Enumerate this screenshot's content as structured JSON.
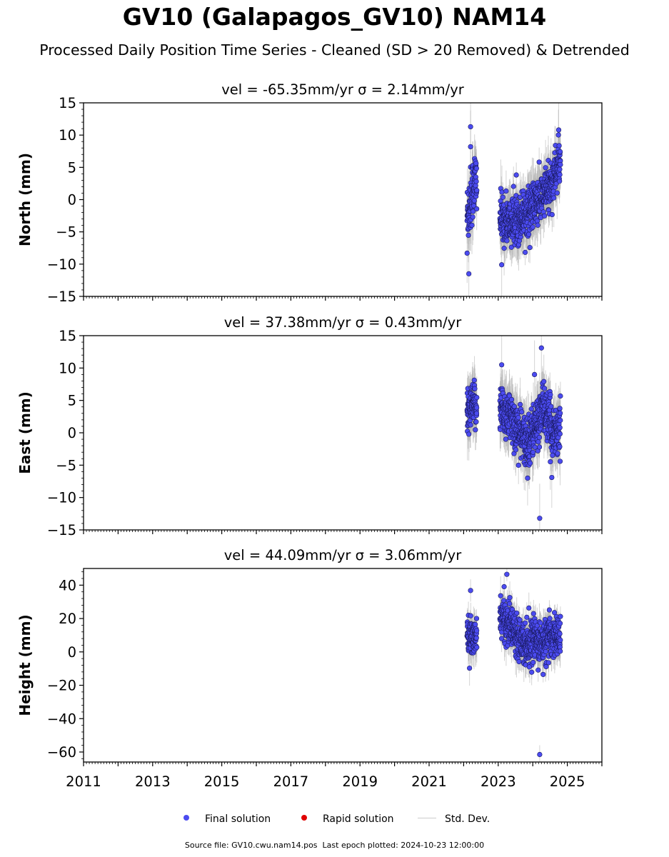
{
  "title": "GV10 (Galapagos_GV10) NAM14",
  "subtitle": "Processed Daily Position Time Series - Cleaned (SD > 20 Removed) & Detrended",
  "footer": {
    "source_label": "Source file: GV10.cwu.nam14.pos",
    "epoch_label": "Last epoch plotted: 2024-10-23 12:00:00"
  },
  "legend": {
    "final": "Final solution",
    "rapid": "Rapid solution",
    "stddev": "Std. Dev."
  },
  "colors": {
    "final": "#4b4bf0",
    "final_edge": "#1a1a60",
    "rapid": "#e00000",
    "stddev": "#b0b0b0"
  },
  "chart_data": [
    {
      "type": "scatter",
      "title": "vel = -65.35mm/yr   σ = 2.14mm/yr",
      "ylabel": "North (mm)",
      "xlim": [
        2011,
        2026
      ],
      "ylim": [
        -15,
        15
      ],
      "yticks": [
        -15,
        -10,
        -5,
        0,
        5,
        10,
        15
      ],
      "ytick_labels": [
        "−15",
        "−10",
        "−5",
        "0",
        "5",
        "10",
        "15"
      ],
      "clusters": [
        {
          "x_start": 2022.1,
          "x_end": 2022.38,
          "anchors": [
            [
              2022.1,
              -2.5
            ],
            [
              2022.2,
              0
            ],
            [
              2022.3,
              2.5
            ],
            [
              2022.38,
              3
            ]
          ],
          "sd": 2.5,
          "err": 3.5
        },
        {
          "x_start": 2023.05,
          "x_end": 2024.8,
          "anchors": [
            [
              2023.05,
              -3
            ],
            [
              2023.4,
              -3.5
            ],
            [
              2023.8,
              -2
            ],
            [
              2024.2,
              0
            ],
            [
              2024.5,
              2
            ],
            [
              2024.8,
              6
            ]
          ],
          "sd": 1.8,
          "err": 3.5
        }
      ],
      "outliers": [
        [
          2022.2,
          11.3
        ],
        [
          2022.2,
          8.2
        ],
        [
          2022.15,
          -11.5
        ],
        [
          2022.1,
          -8.3
        ],
        [
          2023.1,
          -10.1
        ],
        [
          2024.75,
          10.8
        ]
      ]
    },
    {
      "type": "scatter",
      "title": "vel = 37.38mm/yr   σ = 0.43mm/yr",
      "ylabel": "East (mm)",
      "xlim": [
        2011,
        2026
      ],
      "ylim": [
        -15,
        15
      ],
      "yticks": [
        -15,
        -10,
        -5,
        0,
        5,
        10,
        15
      ],
      "ytick_labels": [
        "−15",
        "−10",
        "−5",
        "0",
        "5",
        "10",
        "15"
      ],
      "clusters": [
        {
          "x_start": 2022.1,
          "x_end": 2022.38,
          "anchors": [
            [
              2022.1,
              2
            ],
            [
              2022.25,
              4
            ],
            [
              2022.38,
              4
            ]
          ],
          "sd": 1.7,
          "err": 3.5
        },
        {
          "x_start": 2023.05,
          "x_end": 2024.8,
          "anchors": [
            [
              2023.05,
              4
            ],
            [
              2023.4,
              2
            ],
            [
              2023.8,
              -1.5
            ],
            [
              2024.1,
              1
            ],
            [
              2024.3,
              4
            ],
            [
              2024.6,
              0
            ],
            [
              2024.8,
              1
            ]
          ],
          "sd": 1.9,
          "err": 3.5
        }
      ],
      "outliers": [
        [
          2023.1,
          10.5
        ],
        [
          2024.25,
          13.1
        ],
        [
          2024.2,
          -13.2
        ],
        [
          2023.85,
          -7
        ],
        [
          2024.55,
          -6.9
        ],
        [
          2024.05,
          9
        ]
      ]
    },
    {
      "type": "scatter",
      "title": "vel = 44.09mm/yr   σ = 3.06mm/yr",
      "ylabel": "Height (mm)",
      "xlim": [
        2011,
        2026
      ],
      "ylim": [
        -66,
        50
      ],
      "yticks": [
        -60,
        -40,
        -20,
        0,
        20,
        40
      ],
      "ytick_labels": [
        "−60",
        "−40",
        "−20",
        "0",
        "20",
        "40"
      ],
      "xticks": [
        2011,
        2013,
        2015,
        2017,
        2019,
        2021,
        2023,
        2025
      ],
      "xtick_labels": [
        "2011",
        "2013",
        "2015",
        "2017",
        "2019",
        "2021",
        "2023",
        "2025"
      ],
      "clusters": [
        {
          "x_start": 2022.1,
          "x_end": 2022.38,
          "anchors": [
            [
              2022.1,
              10
            ],
            [
              2022.25,
              8
            ],
            [
              2022.38,
              8
            ]
          ],
          "sd": 5,
          "err": 9
        },
        {
          "x_start": 2023.05,
          "x_end": 2024.8,
          "anchors": [
            [
              2023.05,
              22
            ],
            [
              2023.4,
              15
            ],
            [
              2023.8,
              5
            ],
            [
              2024.1,
              8
            ],
            [
              2024.3,
              5
            ],
            [
              2024.6,
              10
            ],
            [
              2024.8,
              8
            ]
          ],
          "sd": 6,
          "err": 9
        }
      ],
      "outliers": [
        [
          2023.25,
          46.5
        ],
        [
          2022.2,
          36.8
        ],
        [
          2024.2,
          -61.5
        ],
        [
          2024.3,
          -13.5
        ],
        [
          2023.9,
          -9
        ]
      ]
    }
  ]
}
